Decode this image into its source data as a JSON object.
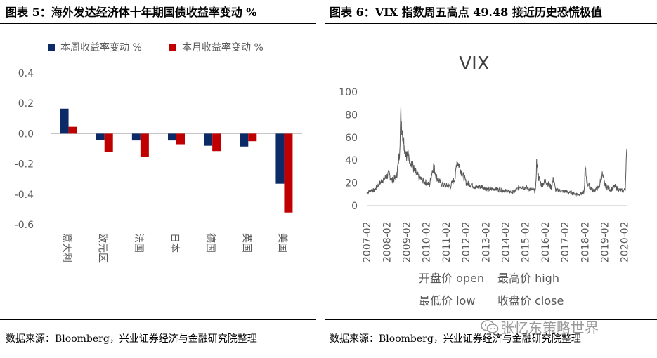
{
  "left_panel": {
    "title": "图表 5：海外发达经济体十年期国债收益率变动 %",
    "source": "数据来源：Bloomberg，兴业证券经济与金融研究院整理"
  },
  "right_panel": {
    "title": "图表 6：VIX 指数周五高点 49.48 接近历史恐慌极值",
    "source": "数据来源：Bloomberg，兴业证券经济与金融研究院整理"
  },
  "watermark": {
    "text": "张忆东策略世界",
    "icon": "wechat-icon"
  },
  "colors": {
    "weekly": "#0c2a66",
    "monthly": "#c00000",
    "vix_line": "#595959",
    "axis_text": "#595959"
  },
  "chart_data": [
    {
      "type": "bar",
      "title": "",
      "categories": [
        "意大利",
        "欧元区",
        "法国",
        "日本",
        "德国",
        "英国",
        "美国"
      ],
      "series": [
        {
          "name": "本周收益率变动 %",
          "values": [
            0.165,
            -0.04,
            -0.045,
            -0.045,
            -0.08,
            -0.085,
            -0.33
          ]
        },
        {
          "name": "本月收益率变动 %",
          "values": [
            0.045,
            -0.12,
            -0.155,
            -0.07,
            -0.115,
            -0.05,
            -0.52
          ]
        }
      ],
      "yticks": [
        "0.4",
        "0.2",
        "0.0",
        "-0.2",
        "-0.4",
        "-0.6"
      ],
      "ylim": [
        -0.6,
        0.4
      ],
      "legend_position": "top",
      "grid": false
    },
    {
      "type": "line",
      "title": "VIX",
      "xticks": [
        "2007-02",
        "2008-02",
        "2009-02",
        "2010-02",
        "2011-02",
        "2012-02",
        "2013-02",
        "2014-02",
        "2015-02",
        "2016-02",
        "2017-02",
        "2018-02",
        "2019-02",
        "2020-02"
      ],
      "yticks": [
        "100",
        "80",
        "60",
        "40",
        "20",
        "0"
      ],
      "ylim": [
        0,
        100
      ],
      "xlim": [
        2007.08,
        2020.2
      ],
      "series_anchors": {
        "x": [
          2007.08,
          2007.3,
          2007.45,
          2007.6,
          2007.75,
          2007.9,
          2008.05,
          2008.2,
          2008.35,
          2008.5,
          2008.6,
          2008.72,
          2008.8,
          2008.85,
          2008.95,
          2009.1,
          2009.3,
          2009.5,
          2009.7,
          2009.9,
          2010.1,
          2010.25,
          2010.37,
          2010.45,
          2010.6,
          2010.8,
          2011.0,
          2011.3,
          2011.55,
          2011.62,
          2011.75,
          2011.9,
          2012.1,
          2012.4,
          2012.6,
          2012.9,
          2013.2,
          2013.5,
          2013.8,
          2014.1,
          2014.4,
          2014.6,
          2014.8,
          2015.1,
          2015.4,
          2015.6,
          2015.65,
          2015.75,
          2015.9,
          2016.1,
          2016.4,
          2016.5,
          2016.6,
          2016.9,
          2017.2,
          2017.5,
          2017.8,
          2018.05,
          2018.1,
          2018.2,
          2018.5,
          2018.8,
          2018.95,
          2019.1,
          2019.4,
          2019.6,
          2019.8,
          2020.0,
          2020.1,
          2020.13,
          2020.16,
          2020.2
        ],
        "y": [
          11,
          14,
          13,
          17,
          20,
          23,
          25,
          28,
          22,
          24,
          28,
          45,
          80,
          70,
          55,
          45,
          40,
          30,
          25,
          22,
          20,
          18,
          30,
          35,
          25,
          20,
          18,
          17,
          25,
          40,
          35,
          28,
          20,
          18,
          16,
          17,
          14,
          15,
          14,
          13,
          12,
          13,
          17,
          16,
          14,
          13,
          38,
          25,
          18,
          22,
          16,
          24,
          14,
          13,
          12,
          11,
          10,
          12,
          33,
          20,
          13,
          16,
          28,
          18,
          14,
          17,
          14,
          13,
          14,
          15,
          38,
          45
        ]
      },
      "legend": [
        "开盘价 open",
        "最高价 high",
        "最低价 low",
        "收盘价 close"
      ],
      "legend_position": "bottom",
      "grid": false
    }
  ]
}
